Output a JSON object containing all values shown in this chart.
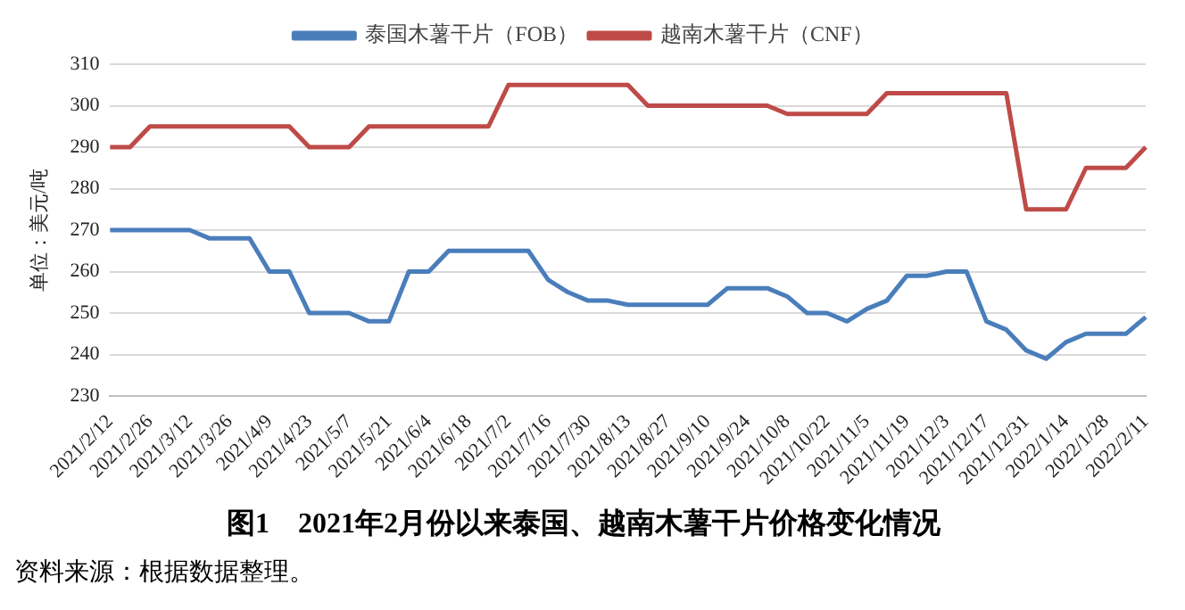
{
  "chart_data": {
    "type": "line",
    "title": "图1　2021年2月份以来泰国、越南木薯干片价格变化情况",
    "ylabel": "单位：美元/吨",
    "annotations": [
      "资料来源：根据数据整理。"
    ],
    "categories": [
      "2021/2/12",
      null,
      "2021/2/26",
      null,
      "2021/3/12",
      null,
      "2021/3/26",
      null,
      "2021/4/9",
      null,
      "2021/4/23",
      null,
      "2021/5/7",
      null,
      "2021/5/21",
      null,
      "2021/6/4",
      null,
      "2021/6/18",
      null,
      "2021/7/2",
      null,
      "2021/7/16",
      null,
      "2021/7/30",
      null,
      "2021/8/13",
      null,
      "2021/8/27",
      null,
      "2021/9/10",
      null,
      "2021/9/24",
      null,
      "2021/10/8",
      null,
      "2021/10/22",
      null,
      "2021/11/5",
      null,
      "2021/11/19",
      null,
      "2021/12/3",
      null,
      "2021/12/17",
      null,
      "2021/12/31",
      null,
      "2022/1/14",
      null,
      "2022/1/28",
      null,
      "2022/2/11"
    ],
    "series": [
      {
        "name": "泰国木薯干片（FOB）",
        "color": "#4a7ebb",
        "values": [
          270,
          270,
          270,
          270,
          270,
          268,
          268,
          268,
          260,
          260,
          250,
          250,
          250,
          248,
          248,
          260,
          260,
          265,
          265,
          265,
          265,
          265,
          258,
          255,
          253,
          253,
          252,
          252,
          252,
          252,
          252,
          256,
          256,
          256,
          254,
          250,
          250,
          248,
          251,
          253,
          259,
          259,
          260,
          260,
          248,
          246,
          241,
          239,
          243,
          245,
          245,
          245,
          249
        ]
      },
      {
        "name": "越南木薯干片（CNF）",
        "color": "#be4b48",
        "values": [
          290,
          290,
          295,
          295,
          295,
          295,
          295,
          295,
          295,
          295,
          290,
          290,
          290,
          295,
          295,
          295,
          295,
          295,
          295,
          295,
          305,
          305,
          305,
          305,
          305,
          305,
          305,
          300,
          300,
          300,
          300,
          300,
          300,
          300,
          298,
          298,
          298,
          298,
          298,
          303,
          303,
          303,
          303,
          303,
          303,
          303,
          275,
          275,
          275,
          285,
          285,
          285,
          290
        ]
      }
    ],
    "ylim": [
      230,
      310
    ],
    "yticks": [
      230,
      240,
      250,
      260,
      270,
      280,
      290,
      300,
      310
    ],
    "grid": "y",
    "legend": "top",
    "marker": "none",
    "line_style": "solid"
  }
}
